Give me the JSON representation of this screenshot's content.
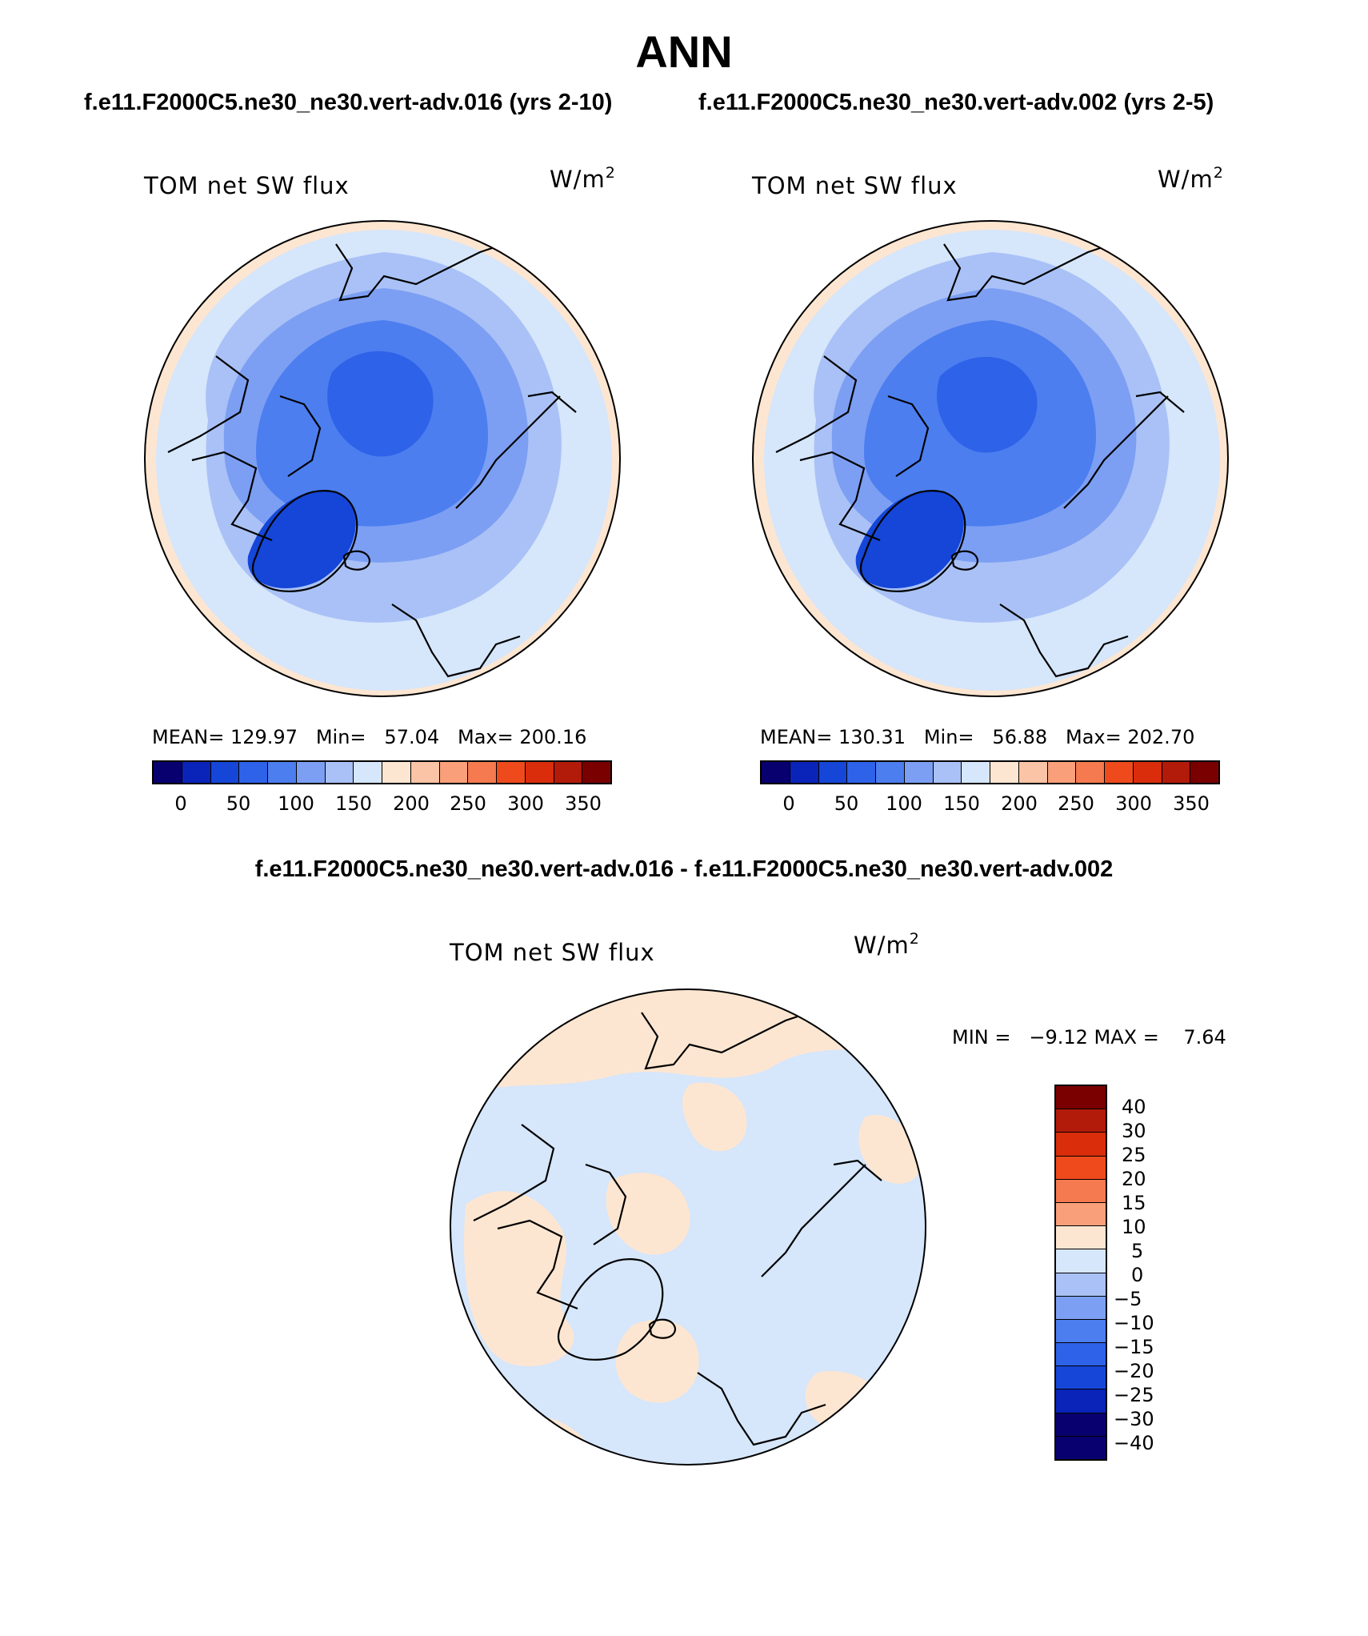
{
  "title": "ANN",
  "panels": [
    {
      "case_title": "f.e11.F2000C5.ne30_ne30.vert-adv.016 (yrs 2-10)",
      "variable": "TOM net SW flux",
      "units": "W/m",
      "units_exp": "2",
      "stats": "MEAN= 129.97   Min=   57.04   Max= 200.16",
      "colorbar_ticks": [
        "0",
        "50",
        "100",
        "150",
        "200",
        "250",
        "300",
        "350"
      ]
    },
    {
      "case_title": "f.e11.F2000C5.ne30_ne30.vert-adv.002 (yrs 2-5)",
      "variable": "TOM net SW flux",
      "units": "W/m",
      "units_exp": "2",
      "stats": "MEAN= 130.31   Min=   56.88   Max= 202.70",
      "colorbar_ticks": [
        "0",
        "50",
        "100",
        "150",
        "200",
        "250",
        "300",
        "350"
      ]
    }
  ],
  "difference": {
    "title": "f.e11.F2000C5.ne30_ne30.vert-adv.016 - f.e11.F2000C5.ne30_ne30.vert-adv.002",
    "variable": "TOM net SW flux",
    "units": "W/m",
    "units_exp": "2",
    "stats": "MIN =   −9.12 MAX =    7.64",
    "colorbar_ticks": [
      "40",
      "30",
      "25",
      "20",
      "15",
      "10",
      "5",
      "0",
      "−5",
      "−10",
      "−15",
      "−20",
      "−25",
      "−30",
      "−40"
    ]
  },
  "colors": {
    "abs_colorbar": [
      "#08006e",
      "#0a23b8",
      "#1546d8",
      "#2e62e8",
      "#4c7ef0",
      "#7c9ff3",
      "#a9c1f6",
      "#d6e6fb",
      "#fde6d1",
      "#fcc4a6",
      "#f9a07b",
      "#f57a50",
      "#ef4a1c",
      "#d92d0b",
      "#b21a0a",
      "#7a0000"
    ],
    "diff_colorbar": [
      "#7a0000",
      "#b21a0a",
      "#d92d0b",
      "#ef4a1c",
      "#f57a50",
      "#f9a07b",
      "#fde6d1",
      "#d6e6fb",
      "#a9c1f6",
      "#7c9ff3",
      "#4c7ef0",
      "#2e62e8",
      "#1546d8",
      "#0a23b8",
      "#08006e"
    ]
  }
}
